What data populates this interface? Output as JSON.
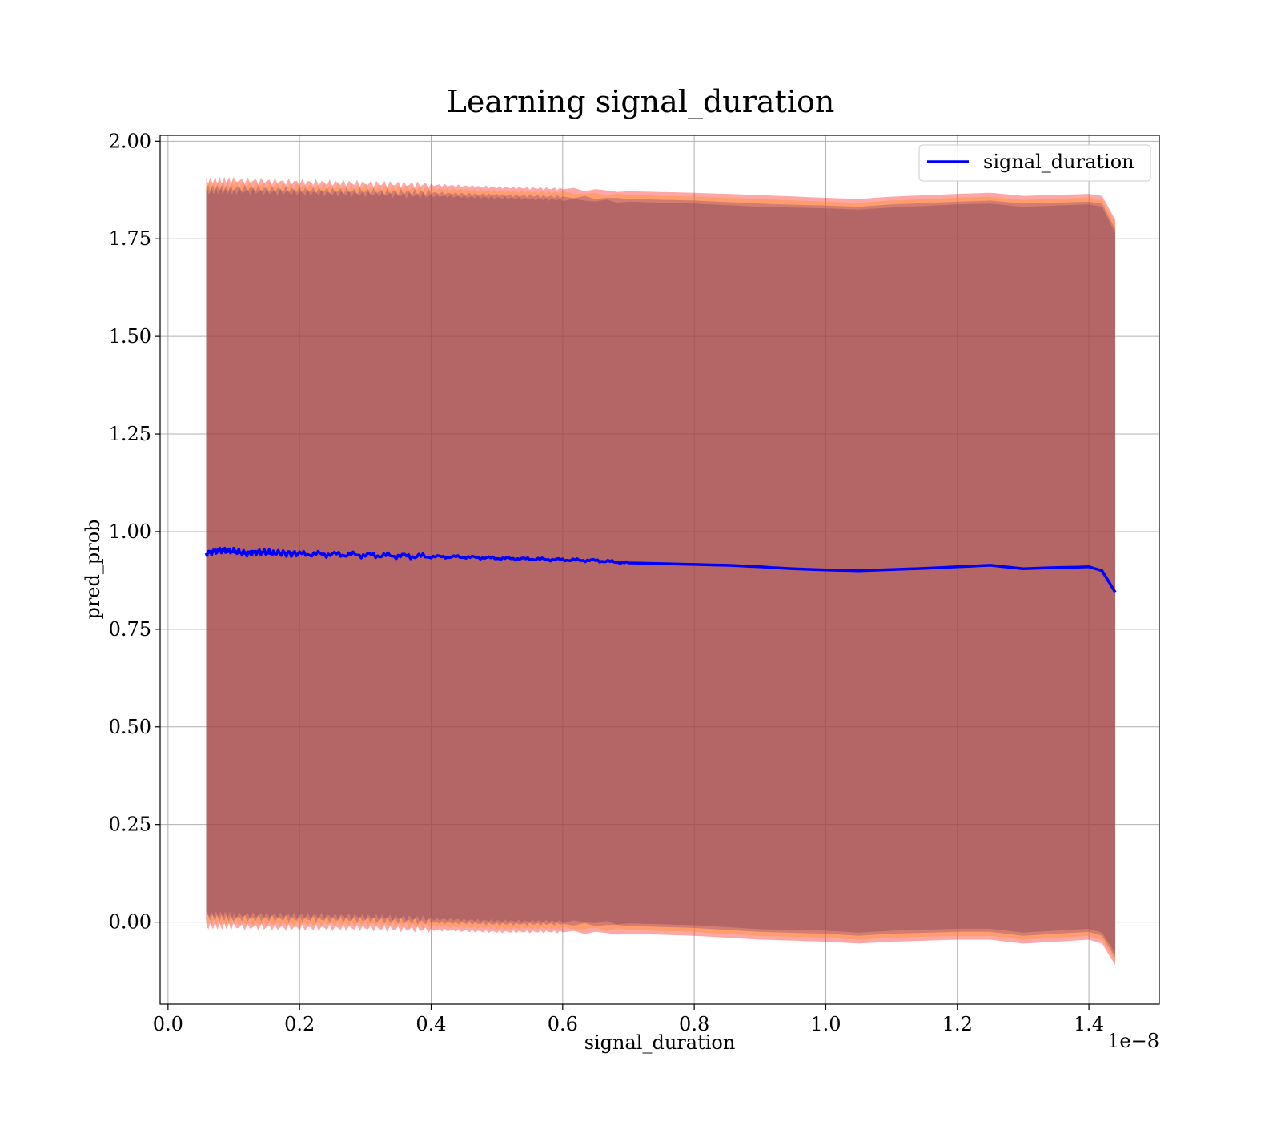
{
  "chart_data": {
    "type": "line",
    "title": "Learning signal_duration",
    "xlabel": "signal_duration",
    "ylabel": "pred_prob",
    "x_offset_label": "1e−8",
    "xlim": [
      -0.012,
      1.507
    ],
    "ylim": [
      -0.21,
      2.015
    ],
    "xticks": [
      0.0,
      0.2,
      0.4,
      0.6,
      0.8,
      1.0,
      1.2,
      1.4
    ],
    "xtick_labels": [
      "0.0",
      "0.2",
      "0.4",
      "0.6",
      "0.8",
      "1.0",
      "1.2",
      "1.4"
    ],
    "yticks": [
      0.0,
      0.25,
      0.5,
      0.75,
      1.0,
      1.25,
      1.5,
      1.75,
      2.0
    ],
    "ytick_labels": [
      "0.00",
      "0.25",
      "0.50",
      "0.75",
      "1.00",
      "1.25",
      "1.50",
      "1.75",
      "2.00"
    ],
    "grid": true,
    "legend_position": "top-right",
    "series": [
      {
        "name": "signal_duration",
        "color": "#0000ff",
        "x": [
          0.058,
          0.08,
          0.1,
          0.12,
          0.14,
          0.16,
          0.2,
          0.25,
          0.3,
          0.35,
          0.4,
          0.45,
          0.5,
          0.55,
          0.6,
          0.65,
          0.7,
          0.75,
          0.8,
          0.85,
          0.9,
          0.95,
          1.0,
          1.05,
          1.1,
          1.15,
          1.2,
          1.25,
          1.3,
          1.35,
          1.4,
          1.42,
          1.44
        ],
        "values": [
          0.945,
          0.952,
          0.95,
          0.944,
          0.948,
          0.946,
          0.943,
          0.942,
          0.94,
          0.938,
          0.936,
          0.935,
          0.932,
          0.93,
          0.928,
          0.926,
          0.92,
          0.918,
          0.916,
          0.914,
          0.91,
          0.905,
          0.902,
          0.9,
          0.903,
          0.906,
          0.91,
          0.914,
          0.905,
          0.908,
          0.91,
          0.9,
          0.845
        ]
      }
    ],
    "bands": [
      {
        "color": "#ff0000",
        "x": [
          0.058,
          0.1,
          0.2,
          0.3,
          0.4,
          0.5,
          0.6,
          0.7,
          0.8,
          0.9,
          1.0,
          1.05,
          1.1,
          1.2,
          1.25,
          1.3,
          1.4,
          1.42,
          1.44
        ],
        "upper": [
          1.9,
          1.9,
          1.895,
          1.892,
          1.888,
          1.882,
          1.878,
          1.872,
          1.868,
          1.862,
          1.855,
          1.852,
          1.858,
          1.865,
          1.868,
          1.86,
          1.865,
          1.86,
          1.8
        ],
        "lower": [
          -0.01,
          -0.012,
          -0.015,
          -0.015,
          -0.02,
          -0.025,
          -0.025,
          -0.03,
          -0.035,
          -0.045,
          -0.05,
          -0.055,
          -0.05,
          -0.045,
          -0.045,
          -0.055,
          -0.045,
          -0.055,
          -0.11
        ]
      },
      {
        "color": "#ff8c00",
        "x": [
          0.058,
          0.1,
          0.2,
          0.3,
          0.4,
          0.5,
          0.6,
          0.7,
          0.8,
          0.9,
          1.0,
          1.05,
          1.1,
          1.2,
          1.25,
          1.3,
          1.4,
          1.42,
          1.44
        ],
        "upper": [
          1.89,
          1.89,
          1.885,
          1.882,
          1.878,
          1.872,
          1.868,
          1.862,
          1.858,
          1.852,
          1.845,
          1.842,
          1.848,
          1.855,
          1.858,
          1.85,
          1.855,
          1.85,
          1.79
        ],
        "lower": [
          0.0,
          -0.002,
          -0.005,
          -0.005,
          -0.01,
          -0.015,
          -0.015,
          -0.02,
          -0.025,
          -0.035,
          -0.04,
          -0.045,
          -0.04,
          -0.035,
          -0.035,
          -0.045,
          -0.035,
          -0.045,
          -0.1
        ]
      },
      {
        "color": "#7f3f7f",
        "x": [
          0.058,
          0.1,
          0.2,
          0.3,
          0.4,
          0.5,
          0.6,
          0.7,
          0.8,
          0.9,
          1.0,
          1.05,
          1.1,
          1.2,
          1.25,
          1.3,
          1.4,
          1.42,
          1.44
        ],
        "upper": [
          1.88,
          1.88,
          1.875,
          1.872,
          1.868,
          1.862,
          1.858,
          1.852,
          1.848,
          1.84,
          1.835,
          1.832,
          1.838,
          1.845,
          1.848,
          1.84,
          1.845,
          1.84,
          1.775
        ],
        "lower": [
          0.012,
          0.01,
          0.008,
          0.006,
          0.0,
          -0.005,
          -0.005,
          -0.01,
          -0.015,
          -0.025,
          -0.03,
          -0.035,
          -0.03,
          -0.025,
          -0.025,
          -0.035,
          -0.025,
          -0.035,
          -0.09
        ]
      },
      {
        "color": "#7f3b4f",
        "x": [
          0.058,
          0.1,
          0.2,
          0.3,
          0.4,
          0.5,
          0.6,
          0.7,
          0.8,
          0.9,
          1.0,
          1.05,
          1.1,
          1.2,
          1.25,
          1.3,
          1.4,
          1.42,
          1.44
        ],
        "upper": [
          1.872,
          1.872,
          1.868,
          1.865,
          1.86,
          1.855,
          1.85,
          1.845,
          1.84,
          1.832,
          1.828,
          1.825,
          1.83,
          1.838,
          1.84,
          1.832,
          1.838,
          1.832,
          1.765
        ],
        "lower": [
          0.02,
          0.018,
          0.016,
          0.014,
          0.008,
          0.003,
          0.002,
          -0.003,
          -0.008,
          -0.018,
          -0.022,
          -0.027,
          -0.022,
          -0.017,
          -0.017,
          -0.027,
          -0.017,
          -0.027,
          -0.08
        ]
      }
    ]
  }
}
